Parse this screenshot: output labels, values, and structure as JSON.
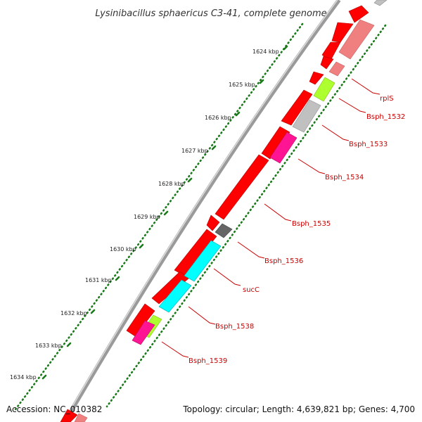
{
  "title": "Lysinibacillus sphaericus C3-41, complete genome",
  "footer": {
    "accession": "Accession: NC_010382",
    "topology": "Topology: circular; Length: 4,639,821 bp; Genes: 4,700"
  },
  "ruler": {
    "labels": [
      "1624 kbp",
      "1625 kbp",
      "1626 kbp",
      "1627 kbp",
      "1628 kbp",
      "1629 kbp",
      "1630 kbp",
      "1631 kbp",
      "1632 kbp",
      "1633 kbp",
      "1634 kbp"
    ]
  },
  "colors": {
    "cds": "#ff0000",
    "rna": "#f08080",
    "orange_gene": "#ff8c00",
    "lime_gene": "#adff2f",
    "gray_gene": "#c0c0c0",
    "magenta_gene": "#ff1493",
    "dark_gray_gene": "#666666",
    "cyan_gene": "#00ffff",
    "label_red": "#cc0000",
    "tick_green": "#1a7a1a"
  },
  "gene_labels": [
    "rplS",
    "Bsph_1532",
    "Bsph_1533",
    "Bsph_1534",
    "Bsph_1535",
    "Bsph_1536",
    "sucC",
    "Bsph_1538",
    "Bsph_1539"
  ]
}
